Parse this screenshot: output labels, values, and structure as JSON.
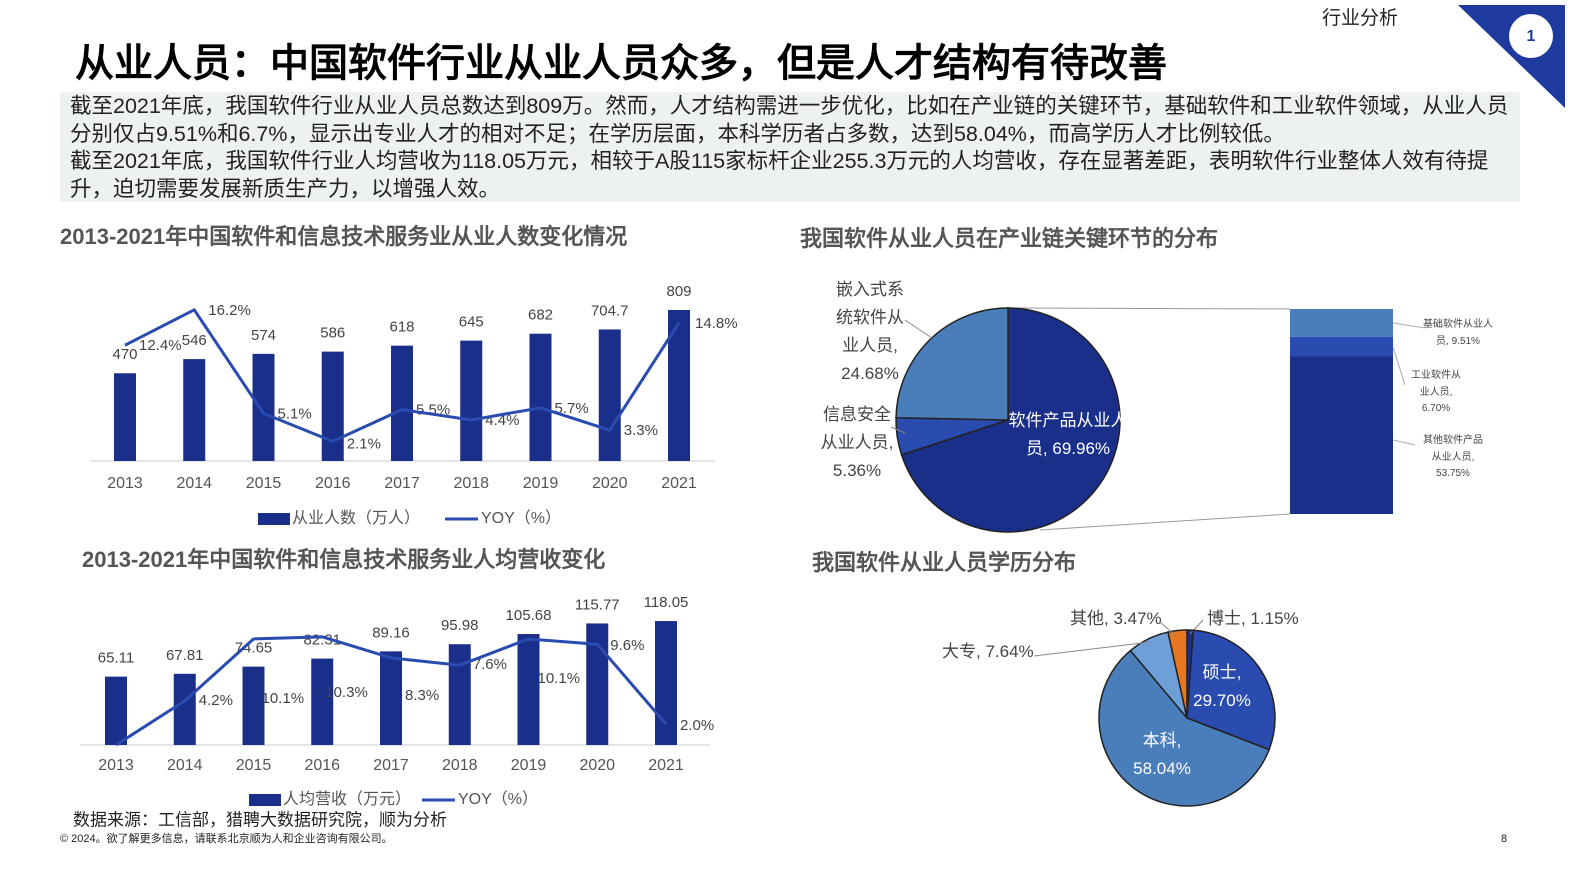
{
  "header": {
    "section": "行业分析",
    "page_badge": "1",
    "title": "从业人员：中国软件行业从业人员众多，但是人才结构有待改善"
  },
  "summary": [
    "截至2021年底，我国软件行业从业人员总数达到809万。然而，人才结构需进一步优化，比如在产业链的关键环节，基础软件和工业软件领域，从业人员分别仅占9.51%和6.7%，显示出专业人才的相对不足；在学历层面，本科学历者占多数，达到58.04%，而高学历人才比例较低。",
    "截至2021年底，我国软件行业人均营收为118.05万元，相较于A股115家标杆企业255.3万元的人均营收，存在显著差距，表明软件行业整体人效有待提升，迫切需要发展新质生产力，以增强人效。"
  ],
  "chart_data": [
    {
      "type": "bar",
      "title": "2013-2021年中国软件和信息技术服务业从业人数变化情况",
      "categories": [
        "2013",
        "2014",
        "2015",
        "2016",
        "2017",
        "2018",
        "2019",
        "2020",
        "2021"
      ],
      "series": [
        {
          "name": "从业人数（万人）",
          "color": "#1a2f8a",
          "values": [
            470,
            546,
            574,
            586,
            618,
            645,
            682,
            704.7,
            809
          ]
        },
        {
          "name": "YOY（%）",
          "type": "line",
          "axis": "y2",
          "color": "#2a4bb0",
          "values": [
            12.4,
            16.2,
            5.1,
            2.1,
            5.5,
            4.4,
            5.7,
            3.3,
            14.8
          ],
          "value_labels": [
            "12.4%",
            "16.2%",
            "5.1%",
            "2.1%",
            "5.5%",
            "4.4%",
            "5.7%",
            "3.3%",
            "14.8%"
          ]
        }
      ],
      "ylim": [
        0,
        900
      ],
      "y2lim": [
        0,
        18
      ]
    },
    {
      "type": "bar",
      "title": "2013-2021年中国软件和信息技术服务业人均营收变化",
      "categories": [
        "2013",
        "2014",
        "2015",
        "2016",
        "2017",
        "2018",
        "2019",
        "2020",
        "2021"
      ],
      "series": [
        {
          "name": "人均营收（万元）",
          "color": "#1a2f8a",
          "values": [
            65.11,
            67.81,
            74.65,
            82.31,
            89.16,
            95.98,
            105.68,
            115.77,
            118.05
          ]
        },
        {
          "name": "YOY（%）",
          "type": "line",
          "axis": "y2",
          "color": "#2a4bb0",
          "values": [
            0,
            4.2,
            10.1,
            10.3,
            8.3,
            7.6,
            10.1,
            9.6,
            2.0
          ],
          "value_labels": [
            null,
            "4.2%",
            "10.1%",
            "10.3%",
            "8.3%",
            "7.6%",
            "10.1%",
            "9.6%",
            "2.0%"
          ]
        }
      ],
      "ylim": [
        0,
        130
      ],
      "y2lim": [
        0,
        13
      ]
    },
    {
      "type": "pie",
      "title": "我国软件从业人员在产业链关键环节的分布",
      "values": [
        69.96,
        5.36,
        24.68
      ],
      "value_labels": [
        "软件产品从业人员, 69.96%",
        "信息安全从业人员, 5.36%",
        "嵌入式系统软件从业人员, 24.68%"
      ],
      "colors": [
        "#1a2f8a",
        "#2a4bb0",
        "#4a7ebb"
      ],
      "breakdown": {
        "values": [
          9.51,
          6.7,
          53.75
        ],
        "value_labels": [
          "基础软件从业人员, 9.51%",
          "工业软件从业人员, 6.70%",
          "其他软件产品从业人员, 53.75%"
        ],
        "colors": [
          "#4a7ebb",
          "#2a4bb0",
          "#1a2f8a"
        ]
      }
    },
    {
      "type": "pie",
      "title": "我国软件从业人员学历分布",
      "values": [
        1.15,
        29.7,
        58.04,
        7.64,
        3.47
      ],
      "value_labels": [
        "博士, 1.15%",
        "硕士, 29.70%",
        "本科, 58.04%",
        "大专, 7.64%",
        "其他, 3.47%"
      ],
      "colors": [
        "#1a2f8a",
        "#2a4bb0",
        "#4a7ebb",
        "#6e9fd8",
        "#e87722"
      ]
    }
  ],
  "footer": {
    "source": "数据来源：工信部，猎聘大数据研究院，顺为分析",
    "copyright": "© 2024。欲了解更多信息，请联系北京顺为人和企业咨询有限公司。",
    "page": "8"
  }
}
